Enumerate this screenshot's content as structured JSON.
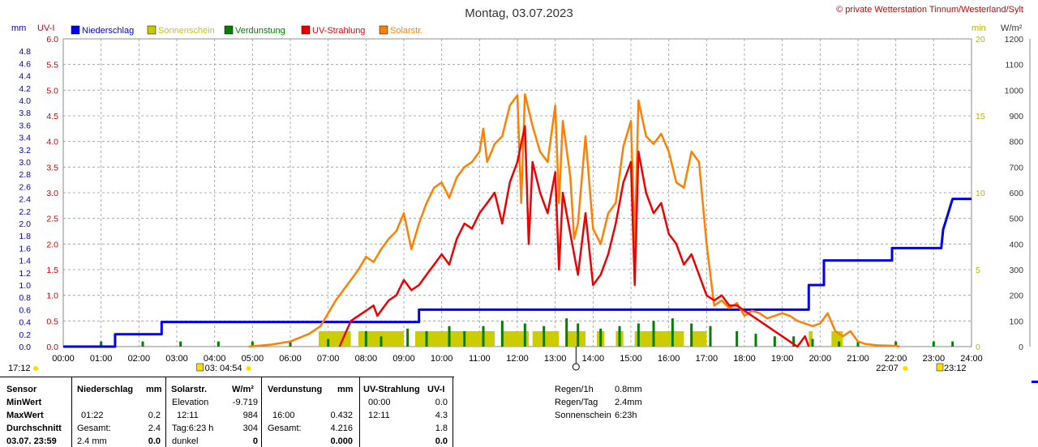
{
  "title": "Montag, 03.07.2023",
  "credit": "© private Wetterstation Tinnum/Westerland/Sylt",
  "axis_units": {
    "mm": "mm",
    "uvi": "UV-I",
    "min": "min",
    "wm2": "W/m²"
  },
  "legend": [
    {
      "label": "Niederschlag",
      "color": "#0000ee"
    },
    {
      "label": "Sonnenschein",
      "color": "#c8c800"
    },
    {
      "label": "Verdunstung",
      "color": "#008000"
    },
    {
      "label": "UV-Strahlung",
      "color": "#ee0000"
    },
    {
      "label": "Solarstr.",
      "color": "#ff8000"
    }
  ],
  "sun_markers": {
    "left": "17:12",
    "sunrise": "03:  04:54",
    "sunset": "22:07",
    "right": "23:12"
  },
  "chart_data": {
    "type": "line",
    "x_range": [
      "00:00",
      "24:00"
    ],
    "x_ticks": [
      "00:00",
      "01:00",
      "02:00",
      "03:00",
      "04:00",
      "05:00",
      "06:00",
      "07:00",
      "08:00",
      "09:00",
      "10:00",
      "11:00",
      "12:00",
      "13:00",
      "14:00",
      "15:00",
      "16:00",
      "17:00",
      "18:00",
      "19:00",
      "20:00",
      "21:00",
      "22:00",
      "23:00",
      "24:00"
    ],
    "axes": {
      "mm": {
        "range": [
          0,
          5.0
        ],
        "ticks": [
          "0.0",
          "0.2",
          "0.4",
          "0.6",
          "0.8",
          "1.0",
          "1.2",
          "1.4",
          "1.6",
          "1.8",
          "2.0",
          "2.2",
          "2.4",
          "2.6",
          "2.8",
          "3.0",
          "3.2",
          "3.4",
          "3.6",
          "3.8",
          "4.0",
          "4.2",
          "4.4",
          "4.6",
          "4.8"
        ]
      },
      "uvi": {
        "range": [
          0,
          6.0
        ],
        "ticks": [
          "0.0",
          "0.5",
          "1.0",
          "1.5",
          "2.0",
          "2.5",
          "3.0",
          "3.5",
          "4.0",
          "4.5",
          "5.0",
          "5.5",
          "6.0"
        ]
      },
      "min": {
        "range": [
          0,
          20
        ],
        "ticks": [
          "0",
          "5",
          "10",
          "15",
          "20"
        ]
      },
      "wm2": {
        "range": [
          0,
          1200
        ],
        "ticks": [
          "0",
          "100",
          "200",
          "300",
          "400",
          "500",
          "600",
          "700",
          "800",
          "900",
          "1000",
          "1100",
          "1200"
        ]
      }
    },
    "grid": true,
    "series": [
      {
        "name": "Niederschlag",
        "axis": "mm",
        "color": "#0000ee",
        "points": [
          [
            0,
            0
          ],
          [
            1.37,
            0
          ],
          [
            1.37,
            0.2
          ],
          [
            2.6,
            0.2
          ],
          [
            2.6,
            0.4
          ],
          [
            9.4,
            0.4
          ],
          [
            9.4,
            0.6
          ],
          [
            19.7,
            0.6
          ],
          [
            19.7,
            1.0
          ],
          [
            20.1,
            1.0
          ],
          [
            20.1,
            1.4
          ],
          [
            21.9,
            1.4
          ],
          [
            21.9,
            1.6
          ],
          [
            23.2,
            1.6
          ],
          [
            23.25,
            1.9
          ],
          [
            23.35,
            2.1
          ],
          [
            23.45,
            2.3
          ],
          [
            23.5,
            2.4
          ],
          [
            24,
            2.4
          ]
        ]
      },
      {
        "name": "Solarstr.",
        "axis": "wm2",
        "color": "#ff8000",
        "points": [
          [
            4.9,
            0
          ],
          [
            5.5,
            8
          ],
          [
            6.0,
            20
          ],
          [
            6.5,
            50
          ],
          [
            6.8,
            80
          ],
          [
            7.0,
            130
          ],
          [
            7.2,
            180
          ],
          [
            7.4,
            220
          ],
          [
            7.6,
            260
          ],
          [
            7.8,
            300
          ],
          [
            8.0,
            350
          ],
          [
            8.2,
            330
          ],
          [
            8.4,
            380
          ],
          [
            8.6,
            420
          ],
          [
            8.8,
            450
          ],
          [
            9.0,
            520
          ],
          [
            9.2,
            380
          ],
          [
            9.4,
            480
          ],
          [
            9.6,
            560
          ],
          [
            9.8,
            620
          ],
          [
            10.0,
            640
          ],
          [
            10.2,
            580
          ],
          [
            10.4,
            660
          ],
          [
            10.6,
            700
          ],
          [
            10.8,
            720
          ],
          [
            11.0,
            760
          ],
          [
            11.1,
            850
          ],
          [
            11.2,
            720
          ],
          [
            11.4,
            790
          ],
          [
            11.6,
            820
          ],
          [
            11.8,
            940
          ],
          [
            12.0,
            980
          ],
          [
            12.1,
            560
          ],
          [
            12.2,
            984
          ],
          [
            12.4,
            860
          ],
          [
            12.6,
            760
          ],
          [
            12.8,
            720
          ],
          [
            13.0,
            940
          ],
          [
            13.1,
            560
          ],
          [
            13.2,
            880
          ],
          [
            13.4,
            660
          ],
          [
            13.5,
            420
          ],
          [
            13.6,
            480
          ],
          [
            13.8,
            820
          ],
          [
            14.0,
            460
          ],
          [
            14.2,
            400
          ],
          [
            14.4,
            520
          ],
          [
            14.6,
            560
          ],
          [
            14.8,
            780
          ],
          [
            15.0,
            880
          ],
          [
            15.1,
            400
          ],
          [
            15.2,
            960
          ],
          [
            15.4,
            820
          ],
          [
            15.6,
            790
          ],
          [
            15.8,
            830
          ],
          [
            16.0,
            760
          ],
          [
            16.2,
            640
          ],
          [
            16.4,
            620
          ],
          [
            16.6,
            760
          ],
          [
            16.8,
            720
          ],
          [
            17.0,
            400
          ],
          [
            17.2,
            160
          ],
          [
            17.4,
            180
          ],
          [
            17.6,
            150
          ],
          [
            17.8,
            170
          ],
          [
            18.0,
            120
          ],
          [
            18.2,
            140
          ],
          [
            18.4,
            130
          ],
          [
            18.6,
            110
          ],
          [
            18.8,
            120
          ],
          [
            19.0,
            130
          ],
          [
            19.2,
            120
          ],
          [
            19.4,
            100
          ],
          [
            19.6,
            90
          ],
          [
            19.8,
            80
          ],
          [
            20.0,
            90
          ],
          [
            20.2,
            130
          ],
          [
            20.4,
            60
          ],
          [
            20.6,
            40
          ],
          [
            20.8,
            60
          ],
          [
            21.0,
            20
          ],
          [
            21.2,
            10
          ],
          [
            21.5,
            5
          ],
          [
            22.0,
            3
          ],
          [
            22.1,
            0
          ]
        ]
      },
      {
        "name": "UV-Strahlung",
        "axis": "uvi",
        "color": "#ee0000",
        "points": [
          [
            7.3,
            0
          ],
          [
            7.6,
            0.5
          ],
          [
            8.0,
            0.7
          ],
          [
            8.2,
            0.8
          ],
          [
            8.3,
            0.6
          ],
          [
            8.6,
            0.9
          ],
          [
            8.8,
            1.0
          ],
          [
            9.0,
            1.3
          ],
          [
            9.2,
            1.1
          ],
          [
            9.4,
            1.2
          ],
          [
            9.6,
            1.4
          ],
          [
            9.8,
            1.6
          ],
          [
            10.0,
            1.8
          ],
          [
            10.2,
            1.6
          ],
          [
            10.4,
            2.1
          ],
          [
            10.6,
            2.4
          ],
          [
            10.8,
            2.3
          ],
          [
            11.0,
            2.6
          ],
          [
            11.2,
            2.8
          ],
          [
            11.4,
            3.0
          ],
          [
            11.6,
            2.4
          ],
          [
            11.8,
            3.2
          ],
          [
            12.0,
            3.6
          ],
          [
            12.2,
            4.3
          ],
          [
            12.3,
            2.0
          ],
          [
            12.4,
            3.6
          ],
          [
            12.6,
            3.0
          ],
          [
            12.8,
            2.6
          ],
          [
            13.0,
            3.4
          ],
          [
            13.1,
            1.5
          ],
          [
            13.2,
            3.0
          ],
          [
            13.4,
            2.2
          ],
          [
            13.6,
            1.4
          ],
          [
            13.8,
            2.6
          ],
          [
            14.0,
            1.2
          ],
          [
            14.2,
            1.4
          ],
          [
            14.4,
            1.8
          ],
          [
            14.6,
            2.4
          ],
          [
            14.8,
            3.2
          ],
          [
            15.0,
            3.6
          ],
          [
            15.1,
            1.2
          ],
          [
            15.2,
            3.8
          ],
          [
            15.4,
            3.0
          ],
          [
            15.6,
            2.6
          ],
          [
            15.8,
            2.8
          ],
          [
            16.0,
            2.2
          ],
          [
            16.2,
            2.0
          ],
          [
            16.4,
            1.6
          ],
          [
            16.6,
            1.8
          ],
          [
            16.8,
            1.4
          ],
          [
            17.0,
            1.0
          ],
          [
            17.2,
            0.9
          ],
          [
            17.4,
            1.0
          ],
          [
            17.6,
            0.8
          ],
          [
            17.8,
            0.8
          ],
          [
            18.0,
            0.7
          ],
          [
            18.2,
            0.6
          ],
          [
            18.4,
            0.5
          ],
          [
            18.6,
            0.4
          ],
          [
            18.8,
            0.3
          ],
          [
            19.0,
            0.2
          ],
          [
            19.2,
            0.1
          ],
          [
            19.4,
            0
          ],
          [
            19.6,
            0.2
          ],
          [
            19.7,
            0
          ]
        ]
      }
    ],
    "sunshine_blocks": [
      [
        6.75,
        7.6
      ],
      [
        7.8,
        9.0
      ],
      [
        9.3,
        11.4
      ],
      [
        11.6,
        12.3
      ],
      [
        12.4,
        13.1
      ],
      [
        13.3,
        13.8
      ],
      [
        14.1,
        14.3
      ],
      [
        14.6,
        14.8
      ],
      [
        15.1,
        16.4
      ],
      [
        16.6,
        17.0
      ],
      [
        19.7,
        19.8
      ],
      [
        20.3,
        20.6
      ]
    ],
    "evaporation_marks": [
      [
        1.0,
        20
      ],
      [
        2.1,
        20
      ],
      [
        3.1,
        20
      ],
      [
        4.1,
        20
      ],
      [
        5.0,
        20
      ],
      [
        6.0,
        20
      ],
      [
        7.0,
        30
      ],
      [
        8.0,
        60
      ],
      [
        8.4,
        40
      ],
      [
        9.1,
        70
      ],
      [
        9.6,
        60
      ],
      [
        10.2,
        80
      ],
      [
        10.6,
        60
      ],
      [
        11.1,
        80
      ],
      [
        11.6,
        100
      ],
      [
        12.2,
        90
      ],
      [
        12.7,
        80
      ],
      [
        13.3,
        110
      ],
      [
        13.6,
        90
      ],
      [
        14.2,
        70
      ],
      [
        14.7,
        80
      ],
      [
        15.2,
        90
      ],
      [
        15.6,
        100
      ],
      [
        16.1,
        110
      ],
      [
        16.6,
        90
      ],
      [
        17.1,
        80
      ],
      [
        17.8,
        60
      ],
      [
        18.3,
        50
      ],
      [
        18.8,
        40
      ],
      [
        19.3,
        40
      ],
      [
        19.8,
        30
      ],
      [
        20.5,
        20
      ],
      [
        21.0,
        20
      ],
      [
        22.0,
        20
      ],
      [
        23.0,
        20
      ],
      [
        23.5,
        20
      ]
    ],
    "sunrise_hour": 4.9,
    "sunset_hour": 22.12,
    "zenith_hour": 13.55
  },
  "table": {
    "col1": {
      "rows": [
        "Sensor",
        "MinWert",
        "MaxWert",
        "Durchschnitt",
        "03.07.  23:59"
      ]
    },
    "niederschlag": {
      "header": "Niederschlag",
      "unit": "mm",
      "r2_time": "01:22",
      "r2_val": "0.2",
      "r3_label": "Gesamt:",
      "r3_val": "2.4",
      "r4_label": "2.4 mm",
      "r4_val": "0.0"
    },
    "solar": {
      "header": "Solarstr.",
      "unit": "W/m²",
      "r1_label": "Elevation",
      "r1_val": "-9.719",
      "r2_time": "12:11",
      "r2_val": "984",
      "r3_label": "Tag:6:23 h",
      "r3_val": "304",
      "r4_label": "dunkel",
      "r4_val": "0"
    },
    "verdunstung": {
      "header": "Verdunstung",
      "unit": "mm",
      "r2_time": "16:00",
      "r2_val": "0.432",
      "r3_label": "Gesamt:",
      "r3_val": "4.216",
      "r4_val": "0.000"
    },
    "uv": {
      "header": "UV-Strahlung",
      "unit": "UV-I",
      "r1_time": "00:00",
      "r1_val": "0.0",
      "r2_time": "12:11",
      "r2_val": "4.3",
      "r3_val": "1.8",
      "r4_val": "0.0"
    },
    "extra": [
      {
        "label": "Regen/1h",
        "value": "0.8mm"
      },
      {
        "label": "Regen/Tag",
        "value": "2.4mm"
      },
      {
        "label": "Sonnenschein",
        "value": "6:23h"
      }
    ]
  }
}
